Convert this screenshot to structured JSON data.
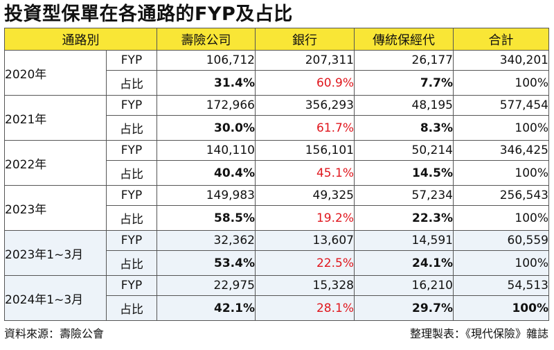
{
  "title": "投資型保單在各通路的FYP及占比",
  "headers": [
    "通路別",
    "壽險公司",
    "銀行",
    "傳統保經代",
    "合計"
  ],
  "groups": [
    {
      "label": "2020年",
      "rows": [
        {
          "metric": "FYP",
          "values": [
            "106,712",
            "207,311",
            "26,177",
            "340,201"
          ]
        },
        {
          "metric": "占比",
          "values": [
            "31.4%",
            "60.9%",
            "7.7%",
            "100%"
          ]
        }
      ]
    },
    {
      "label": "2021年",
      "rows": [
        {
          "metric": "FYP",
          "values": [
            "172,966",
            "356,293",
            "48,195",
            "577,454"
          ]
        },
        {
          "metric": "占比",
          "values": [
            "30.0%",
            "61.7%",
            "8.3%",
            "100%"
          ]
        }
      ]
    },
    {
      "label": "2022年",
      "rows": [
        {
          "metric": "FYP",
          "values": [
            "140,110",
            "156,101",
            "50,214",
            "346,425"
          ]
        },
        {
          "metric": "占比",
          "values": [
            "40.4%",
            "45.1%",
            "14.5%",
            "100%"
          ]
        }
      ]
    },
    {
      "label": "2023年",
      "rows": [
        {
          "metric": "FYP",
          "values": [
            "149,983",
            "49,325",
            "57,234",
            "256,543"
          ]
        },
        {
          "metric": "占比",
          "values": [
            "58.5%",
            "19.2%",
            "22.3%",
            "100%"
          ]
        }
      ]
    },
    {
      "label": "2023年1~3月",
      "rows": [
        {
          "metric": "FYP",
          "values": [
            "32,362",
            "13,607",
            "14,591",
            "60,559"
          ]
        },
        {
          "metric": "占比",
          "values": [
            "53.4%",
            "22.5%",
            "24.1%",
            "100%"
          ]
        }
      ]
    },
    {
      "label": "2024年1~3月",
      "rows": [
        {
          "metric": "FYP",
          "values": [
            "22,975",
            "15,328",
            "16,210",
            "54,513"
          ]
        },
        {
          "metric": "占比",
          "values": [
            "42.1%",
            "28.1%",
            "29.7%",
            "100%"
          ]
        }
      ]
    }
  ],
  "footer": {
    "source": "資料來源：壽險公會",
    "credit": "整理製表：《現代保險》雜誌"
  },
  "colors": {
    "header_bg": "#f9e636",
    "highlight_red": "#e0161d",
    "quarter_row_bg": "#edf3f9"
  }
}
